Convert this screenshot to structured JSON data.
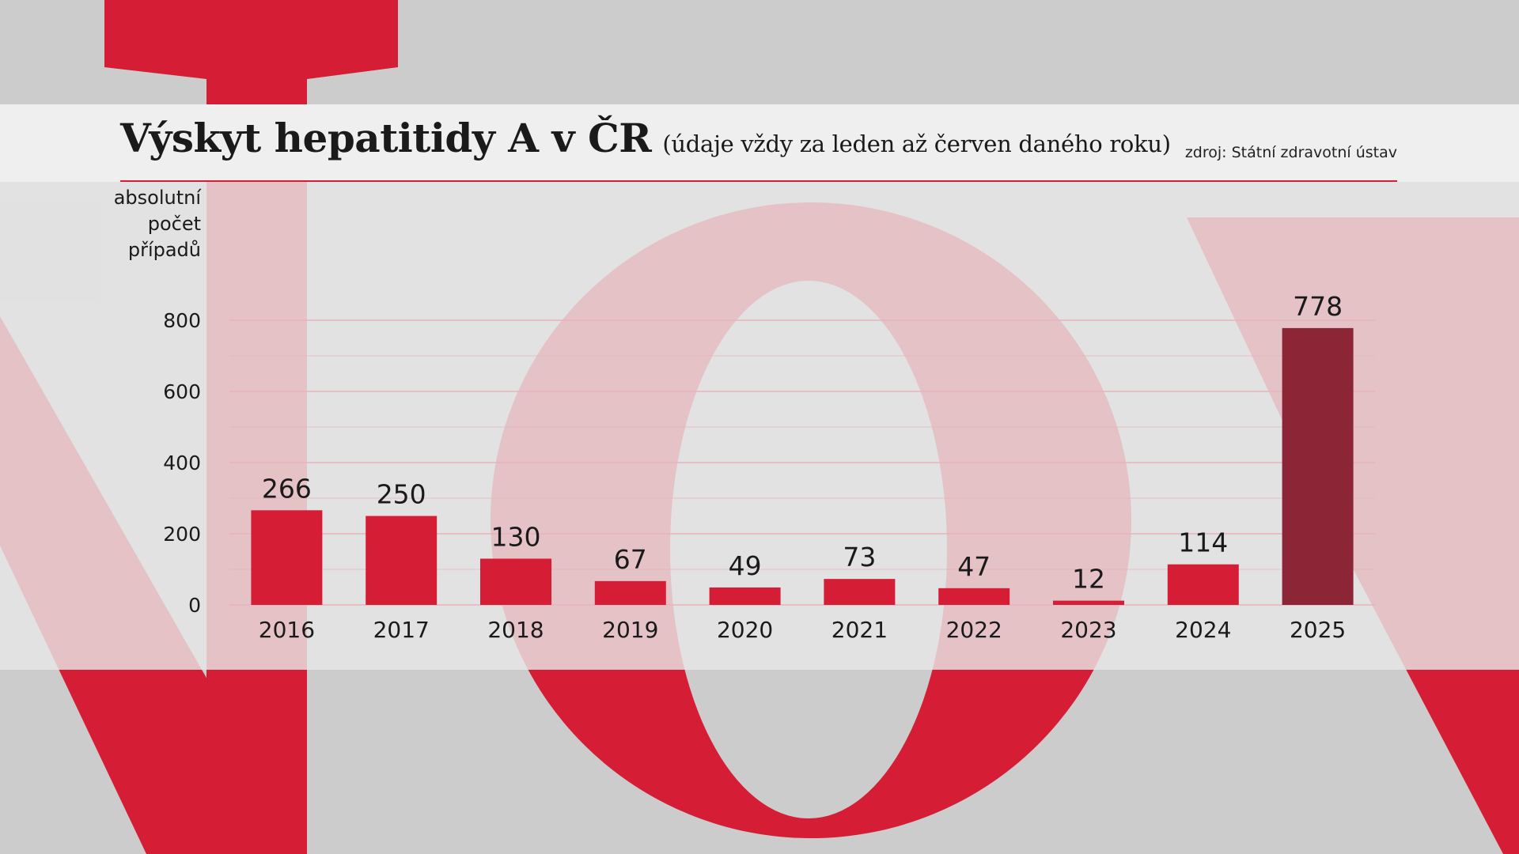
{
  "title": "Výskyt hepatitidy A v ČR",
  "subtitle": "(údaje vždy za leden až červen daného roku)",
  "source": "zdroj: Státní zdravotní ústav",
  "colors": {
    "bar": "#d51e36",
    "bar_highlight": "#8c2637",
    "background": "#cccccc",
    "background_letters": "#d51e36",
    "gridline": "#e7b3bb"
  },
  "chart_data": {
    "type": "bar",
    "title": "Výskyt hepatitidy A v ČR",
    "subtitle": "(údaje vždy za leden až červen daného roku)",
    "ylabel": "absolutní\npočet\npřípadů",
    "xlabel": "",
    "categories": [
      "2016",
      "2017",
      "2018",
      "2019",
      "2020",
      "2021",
      "2022",
      "2023",
      "2024",
      "2025"
    ],
    "values": [
      266,
      250,
      130,
      67,
      49,
      73,
      47,
      12,
      114,
      778
    ],
    "highlight_index": 9,
    "ylim": [
      0,
      800
    ],
    "yticks": [
      0,
      200,
      400,
      600,
      800
    ],
    "grid": true
  }
}
